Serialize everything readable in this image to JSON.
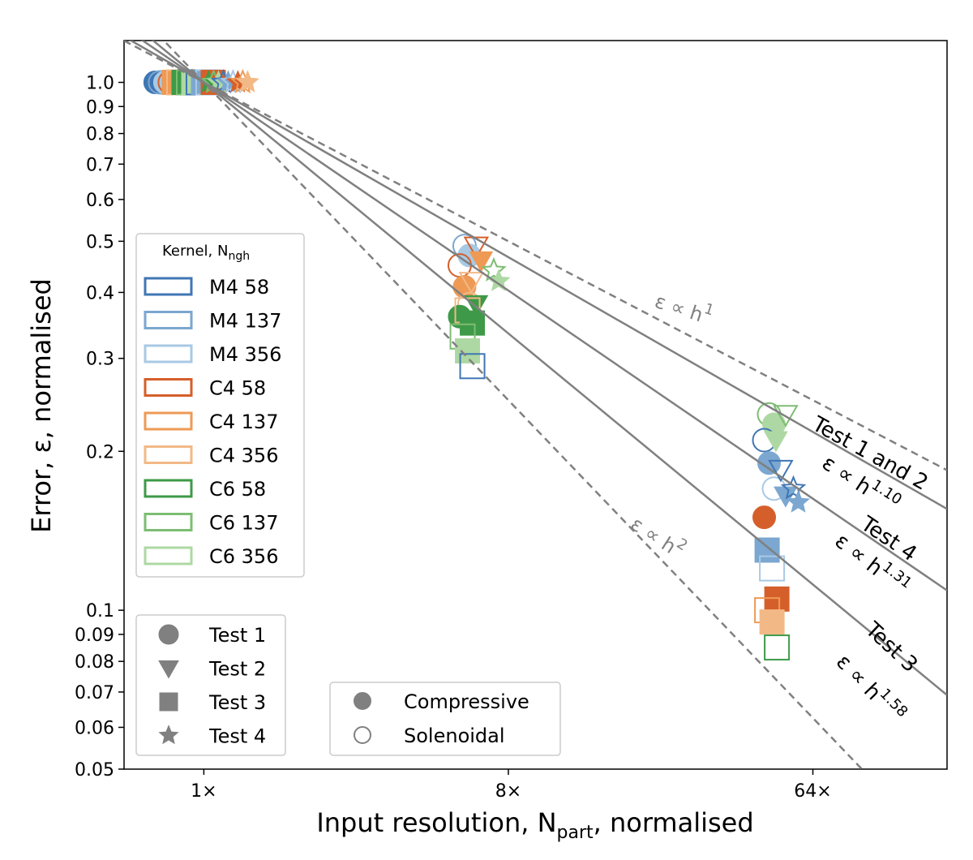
{
  "chart_data": {
    "type": "scatter",
    "xlabel": "Input resolution, N",
    "xlabel_sub": "part",
    "xlabel_suffix": ", normalised",
    "ylabel": "Error, ε, normalised",
    "x_scale": "log2",
    "y_scale": "log",
    "xlim": [
      0.58,
      160
    ],
    "ylim": [
      0.05,
      1.2
    ],
    "x_ticks": [
      1,
      8,
      64
    ],
    "x_tick_labels": [
      "1×",
      "8×",
      "64×"
    ],
    "y_ticks": [
      1.0,
      0.9,
      0.8,
      0.7,
      0.6,
      0.5,
      0.4,
      0.3,
      0.2,
      0.1,
      0.09,
      0.08,
      0.07,
      0.06,
      0.05
    ],
    "y_tick_labels": [
      "1.0",
      "0.9",
      "0.8",
      "0.7",
      "0.6",
      "0.5",
      "0.4",
      "0.3",
      "0.2",
      "0.1",
      "0.09",
      "0.08",
      "0.07",
      "0.06",
      "0.05"
    ],
    "grid": false,
    "fits": [
      {
        "exponent": 1.0,
        "style": "dashed",
        "label": "ε ∝ h",
        "sup": "1",
        "test_label": ""
      },
      {
        "exponent": 1.1,
        "style": "solid",
        "label": "ε ∝ h",
        "sup": "1.10",
        "test_label": "Test 1 and 2"
      },
      {
        "exponent": 1.31,
        "style": "solid",
        "label": "ε ∝ h",
        "sup": "1.31",
        "test_label": "Test 4"
      },
      {
        "exponent": 1.58,
        "style": "solid",
        "label": "ε ∝ h",
        "sup": "1.58",
        "test_label": "Test 3"
      },
      {
        "exponent": 2.0,
        "style": "dashed",
        "label": "ε ∝ h",
        "sup": "2",
        "test_label": ""
      }
    ],
    "kernel_legend": {
      "title": "Kernel, N",
      "title_sub": "ngh",
      "location": "center-left",
      "entries": [
        {
          "label": "M4 58",
          "color": "#3f76b4"
        },
        {
          "label": "M4 137",
          "color": "#7ba7d0"
        },
        {
          "label": "M4 356",
          "color": "#a8c9e4"
        },
        {
          "label": "C4 58",
          "color": "#d55f2a"
        },
        {
          "label": "C4 137",
          "color": "#ee9a55"
        },
        {
          "label": "C4 356",
          "color": "#f2b987"
        },
        {
          "label": "C6 58",
          "color": "#3e9a48"
        },
        {
          "label": "C6 137",
          "color": "#7cbd72"
        },
        {
          "label": "C6 356",
          "color": "#aed8a3"
        }
      ]
    },
    "marker_legend": {
      "location": "lower-left",
      "entries": [
        {
          "label": "Test 1",
          "marker": "circle"
        },
        {
          "label": "Test 2",
          "marker": "triangle"
        },
        {
          "label": "Test 3",
          "marker": "square"
        },
        {
          "label": "Test 4",
          "marker": "star"
        }
      ]
    },
    "fill_legend": {
      "location": "lower-center",
      "entries": [
        {
          "label": "Compressive",
          "fill": "filled"
        },
        {
          "label": "Solenoidal",
          "fill": "hollow"
        }
      ]
    },
    "series": [
      {
        "test": "Test 1",
        "marker": "circle",
        "points": [
          {
            "x": 1,
            "y": 1.0
          },
          {
            "x": 8,
            "y": 0.49
          },
          {
            "x": 8,
            "y": 0.47
          },
          {
            "x": 8,
            "y": 0.45
          },
          {
            "x": 8,
            "y": 0.41
          },
          {
            "x": 8,
            "y": 0.38
          },
          {
            "x": 8,
            "y": 0.36
          },
          {
            "x": 64,
            "y": 0.235
          },
          {
            "x": 64,
            "y": 0.225
          },
          {
            "x": 64,
            "y": 0.21
          },
          {
            "x": 64,
            "y": 0.19
          },
          {
            "x": 64,
            "y": 0.17
          },
          {
            "x": 64,
            "y": 0.15
          }
        ]
      },
      {
        "test": "Test 2",
        "marker": "triangle",
        "points": [
          {
            "x": 1,
            "y": 1.0
          },
          {
            "x": 8,
            "y": 0.49
          },
          {
            "x": 8,
            "y": 0.46
          },
          {
            "x": 8,
            "y": 0.42
          },
          {
            "x": 8,
            "y": 0.38
          },
          {
            "x": 64,
            "y": 0.235
          },
          {
            "x": 64,
            "y": 0.21
          },
          {
            "x": 64,
            "y": 0.185
          },
          {
            "x": 64,
            "y": 0.165
          }
        ]
      },
      {
        "test": "Test 3",
        "marker": "square",
        "points": [
          {
            "x": 1,
            "y": 1.0
          },
          {
            "x": 8,
            "y": 0.37
          },
          {
            "x": 8,
            "y": 0.35
          },
          {
            "x": 8,
            "y": 0.33
          },
          {
            "x": 8,
            "y": 0.31
          },
          {
            "x": 8,
            "y": 0.29
          },
          {
            "x": 64,
            "y": 0.13
          },
          {
            "x": 64,
            "y": 0.12
          },
          {
            "x": 64,
            "y": 0.105
          },
          {
            "x": 64,
            "y": 0.1
          },
          {
            "x": 64,
            "y": 0.095
          },
          {
            "x": 64,
            "y": 0.085
          }
        ]
      },
      {
        "test": "Test 4",
        "marker": "star",
        "points": [
          {
            "x": 1,
            "y": 1.0
          },
          {
            "x": 8,
            "y": 0.44
          },
          {
            "x": 8,
            "y": 0.42
          },
          {
            "x": 64,
            "y": 0.17
          },
          {
            "x": 64,
            "y": 0.16
          }
        ]
      }
    ]
  }
}
